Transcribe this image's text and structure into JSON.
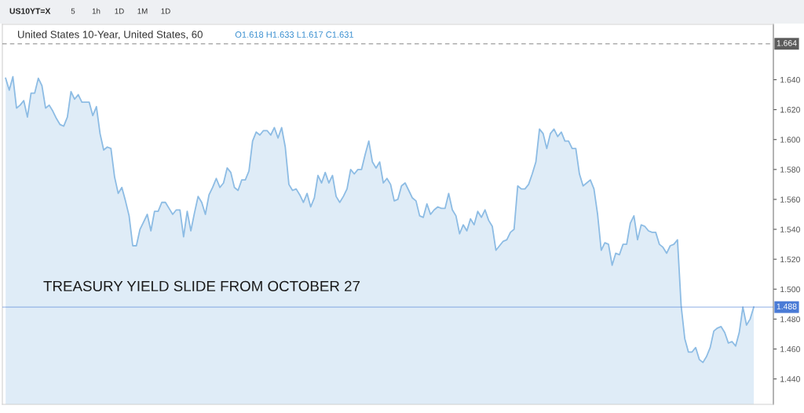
{
  "chart_data": {
    "type": "area",
    "title": "United States 10-Year, United States, 60",
    "subtitle": "O1.618 H1.633 L1.617 C1.631",
    "annotations": [
      "TREASURY YIELD SLIDE FROM OCTOBER 27",
      "US10YT=X",
      "5",
      "1h",
      "1D",
      "1M",
      "1D"
    ],
    "categories": [
      null,
      null,
      null,
      null,
      null,
      null,
      null,
      null,
      null,
      null,
      null,
      null,
      null,
      null,
      null,
      null,
      null,
      null,
      null,
      null,
      null,
      null,
      null,
      null,
      null,
      null,
      null,
      null,
      null,
      null,
      null,
      null,
      null,
      null,
      null,
      null,
      null,
      null,
      null,
      null,
      null,
      null,
      null,
      null,
      null,
      null,
      null,
      null,
      null,
      null,
      null,
      null,
      null,
      null,
      null,
      null,
      null,
      null,
      null,
      null,
      null,
      null,
      null,
      null,
      null,
      null,
      null,
      null,
      null,
      null,
      null,
      null,
      null,
      null,
      null,
      null,
      null,
      null,
      null,
      null,
      null,
      null,
      null,
      null,
      null,
      null,
      null,
      null,
      null,
      null,
      null,
      null,
      null,
      null,
      null,
      null,
      null,
      null,
      null,
      null,
      null,
      null,
      null,
      null,
      null,
      null,
      null,
      null,
      null,
      null,
      null,
      null,
      null,
      null,
      null,
      null,
      null,
      null,
      null,
      null,
      null,
      null,
      null,
      null,
      null,
      null,
      null,
      null,
      null,
      null,
      null,
      null,
      null,
      null,
      null,
      null,
      null,
      null,
      null,
      null,
      null,
      null,
      null,
      null,
      null,
      null,
      null,
      null,
      null,
      null,
      null,
      null,
      null,
      null,
      null,
      null,
      null,
      null,
      null,
      null,
      null,
      null,
      null,
      null,
      null,
      null,
      null,
      null,
      null,
      null,
      null,
      null,
      null,
      null,
      null,
      null,
      null,
      null,
      null,
      null,
      null,
      null,
      null,
      null,
      null,
      null,
      null,
      null,
      null,
      null,
      null,
      null,
      null,
      null,
      null,
      null,
      null,
      null,
      null,
      null,
      null,
      null,
      null,
      null,
      null,
      null,
      null
    ],
    "series": [
      {
        "color": "#8dbce4",
        "values": [
          1.641,
          1.633,
          1.642,
          1.621,
          1.623,
          1.626,
          1.615,
          1.631,
          1.631,
          1.641,
          1.636,
          1.621,
          1.623,
          1.619,
          1.614,
          1.61,
          1.609,
          1.615,
          1.632,
          1.627,
          1.63,
          1.625,
          1.625,
          1.625,
          1.616,
          1.622,
          1.604,
          1.593,
          1.595,
          1.594,
          1.575,
          1.564,
          1.568,
          1.559,
          1.549,
          1.529,
          1.529,
          1.54,
          1.545,
          1.55,
          1.539,
          1.552,
          1.552,
          1.558,
          1.558,
          1.554,
          1.55,
          1.553,
          1.553,
          1.535,
          1.552,
          1.539,
          1.551,
          1.562,
          1.558,
          1.55,
          1.563,
          1.568,
          1.574,
          1.568,
          1.571,
          1.581,
          1.578,
          1.568,
          1.566,
          1.573,
          1.573,
          1.579,
          1.599,
          1.605,
          1.603,
          1.606,
          1.606,
          1.603,
          1.608,
          1.601,
          1.608,
          1.595,
          1.57,
          1.566,
          1.567,
          1.563,
          1.558,
          1.564,
          1.555,
          1.561,
          1.576,
          1.571,
          1.578,
          1.571,
          1.576,
          1.562,
          1.558,
          1.562,
          1.567,
          1.58,
          1.577,
          1.58,
          1.58,
          1.59,
          1.599,
          1.585,
          1.581,
          1.585,
          1.571,
          1.574,
          1.57,
          1.559,
          1.56,
          1.569,
          1.571,
          1.566,
          1.561,
          1.559,
          1.549,
          1.548,
          1.557,
          1.55,
          1.553,
          1.555,
          1.554,
          1.554,
          1.564,
          1.553,
          1.549,
          1.537,
          1.543,
          1.539,
          1.547,
          1.543,
          1.552,
          1.548,
          1.553,
          1.546,
          1.542,
          1.526,
          1.529,
          1.532,
          1.533,
          1.538,
          1.54,
          1.569,
          1.567,
          1.567,
          1.57,
          1.577,
          1.585,
          1.607,
          1.604,
          1.594,
          1.604,
          1.607,
          1.602,
          1.605,
          1.599,
          1.599,
          1.594,
          1.594,
          1.577,
          1.569,
          1.571,
          1.573,
          1.567,
          1.55,
          1.526,
          1.531,
          1.53,
          1.516,
          1.524,
          1.523,
          1.53,
          1.53,
          1.544,
          1.549,
          1.533,
          1.543,
          1.542,
          1.539,
          1.538,
          1.538,
          1.53,
          1.528,
          1.524,
          1.529,
          1.53,
          1.533,
          1.489,
          1.467,
          1.458,
          1.458,
          1.461,
          1.453,
          1.451,
          1.455,
          1.461,
          1.472,
          1.474,
          1.475,
          1.471,
          1.464,
          1.465,
          1.462,
          1.471,
          1.488,
          1.476,
          1.48,
          1.488
        ]
      }
    ],
    "ylim": [
      1.423,
      1.677
    ],
    "yticks": [
      {
        "value": 1.44,
        "label": "1.440"
      },
      {
        "value": 1.46,
        "label": "1.460"
      },
      {
        "value": 1.48,
        "label": "1.480"
      },
      {
        "value": 1.5,
        "label": "1.500"
      },
      {
        "value": 1.52,
        "label": "1.520"
      },
      {
        "value": 1.54,
        "label": "1.540"
      },
      {
        "value": 1.56,
        "label": "1.560"
      },
      {
        "value": 1.58,
        "label": "1.580"
      },
      {
        "value": 1.6,
        "label": "1.600"
      },
      {
        "value": 1.62,
        "label": "1.620"
      },
      {
        "value": 1.64,
        "label": "1.640"
      }
    ],
    "ref_lines": [
      {
        "axis": "y",
        "value": 1.488,
        "label": "1.488",
        "color": "#4a7bd6",
        "line_style": "solid"
      },
      {
        "axis": "y",
        "value": 1.664,
        "label": "1.664",
        "color": "#5b5b5b",
        "line_style": "dashed"
      }
    ]
  }
}
